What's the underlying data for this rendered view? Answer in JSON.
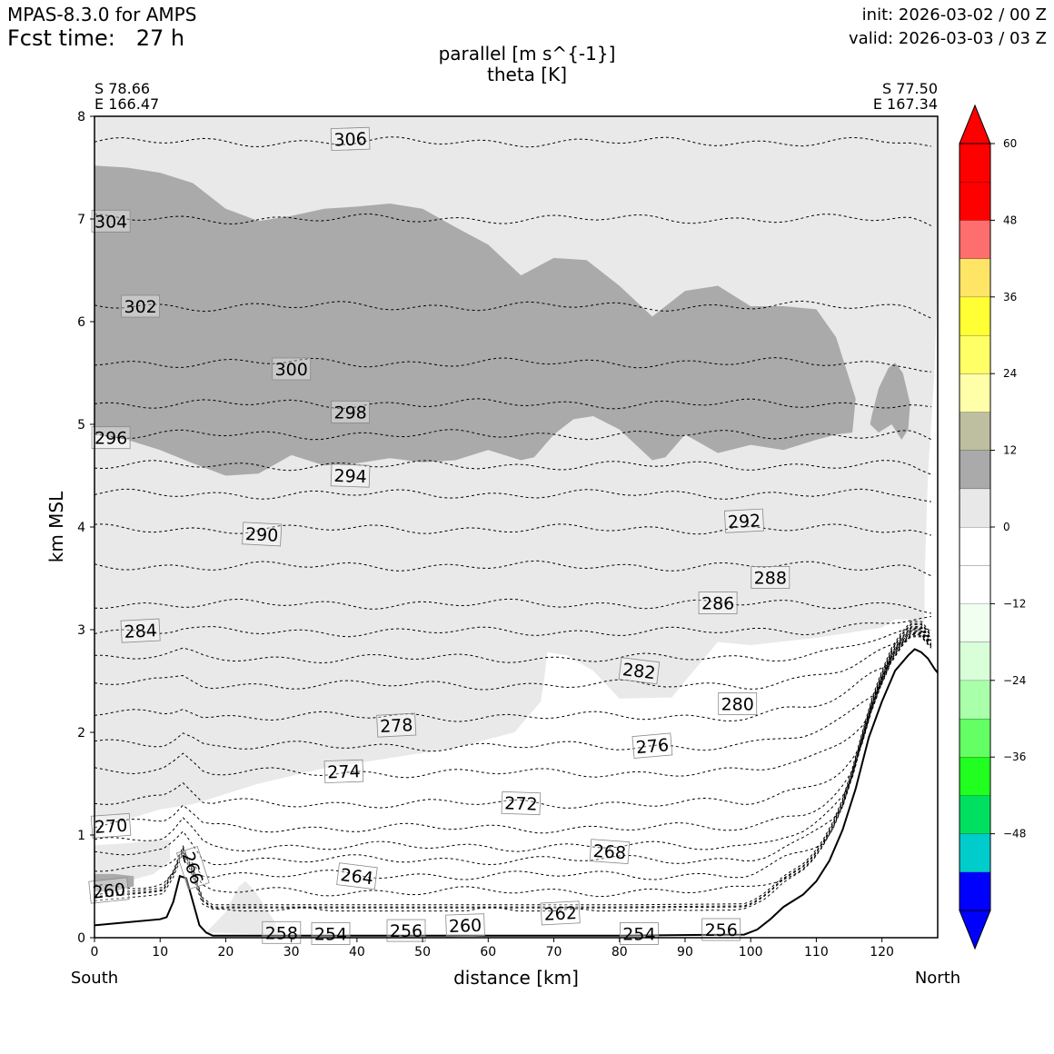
{
  "header": {
    "model": "MPAS-8.3.0 for AMPS",
    "fcst_label": "Fcst time:",
    "fcst_value": "27 h",
    "init": "init: 2026-03-02 / 00 Z",
    "valid": "valid: 2026-03-03 / 03 Z"
  },
  "chart_data": {
    "type": "cross-section",
    "title_line1": "parallel [m s^{-1}]",
    "title_line2": "theta [K]",
    "start_point": {
      "lat": "S 78.66",
      "lon": "E 166.47"
    },
    "end_point": {
      "lat": "S 77.50",
      "lon": "E 167.34"
    },
    "xlabel": "distance [km]",
    "ylabel": "km MSL",
    "xlim": [
      0,
      128.5
    ],
    "ylim": [
      0,
      8
    ],
    "xticks": [
      "0",
      "10",
      "20",
      "30",
      "40",
      "50",
      "60",
      "70",
      "80",
      "90",
      "100",
      "110",
      "120"
    ],
    "yticks": [
      "0",
      "1",
      "2",
      "3",
      "4",
      "5",
      "6",
      "7",
      "8"
    ],
    "left_end_label": "South",
    "right_end_label": "North",
    "colorbar": {
      "min": -60,
      "max": 60,
      "step": 6,
      "tick_labels": [
        "60",
        "48",
        "36",
        "24",
        "12",
        "0",
        "−12",
        "−24",
        "−36",
        "−48"
      ],
      "tick_values": [
        60,
        48,
        36,
        24,
        12,
        0,
        -12,
        -24,
        -36,
        -48
      ],
      "colors": [
        "#0000ff",
        "#00cccc",
        "#00e060",
        "#20ff20",
        "#64ff64",
        "#aaffaa",
        "#d8ffd8",
        "#f0fff0",
        "#ffffff",
        "#ffffff",
        "#e8e8e8",
        "#aaaaaa",
        "#bebea0",
        "#ffffaa",
        "#ffff66",
        "#ffff33",
        "#ffe566",
        "#ff6e6e",
        "#ff0000",
        "#ff0000"
      ]
    },
    "terrain": [
      [
        0,
        0.12
      ],
      [
        5,
        0.15
      ],
      [
        10,
        0.18
      ],
      [
        11,
        0.2
      ],
      [
        12,
        0.35
      ],
      [
        13,
        0.6
      ],
      [
        14,
        0.58
      ],
      [
        15,
        0.35
      ],
      [
        16,
        0.12
      ],
      [
        17,
        0.05
      ],
      [
        18,
        0.02
      ],
      [
        20,
        0.02
      ],
      [
        40,
        0.02
      ],
      [
        60,
        0.02
      ],
      [
        80,
        0.02
      ],
      [
        99,
        0.03
      ],
      [
        101,
        0.08
      ],
      [
        103,
        0.18
      ],
      [
        105,
        0.3
      ],
      [
        108,
        0.42
      ],
      [
        110,
        0.55
      ],
      [
        112,
        0.75
      ],
      [
        114,
        1.05
      ],
      [
        116,
        1.45
      ],
      [
        118,
        1.95
      ],
      [
        120,
        2.3
      ],
      [
        122,
        2.6
      ],
      [
        124,
        2.75
      ],
      [
        125,
        2.81
      ],
      [
        126,
        2.78
      ],
      [
        127,
        2.72
      ],
      [
        128,
        2.62
      ],
      [
        128.5,
        2.58
      ]
    ],
    "wind_12_18_region": [
      [
        0,
        7.52
      ],
      [
        5,
        7.5
      ],
      [
        10,
        7.45
      ],
      [
        15,
        7.35
      ],
      [
        20,
        7.1
      ],
      [
        25,
        6.98
      ],
      [
        30,
        7.03
      ],
      [
        35,
        7.1
      ],
      [
        40,
        7.12
      ],
      [
        45,
        7.15
      ],
      [
        50,
        7.1
      ],
      [
        55,
        6.92
      ],
      [
        60,
        6.75
      ],
      [
        65,
        6.45
      ],
      [
        70,
        6.62
      ],
      [
        75,
        6.6
      ],
      [
        80,
        6.35
      ],
      [
        85,
        6.05
      ],
      [
        90,
        6.3
      ],
      [
        95,
        6.35
      ],
      [
        100,
        6.15
      ],
      [
        105,
        6.15
      ],
      [
        110,
        6.12
      ],
      [
        113,
        5.85
      ],
      [
        115,
        5.45
      ],
      [
        116,
        5.25
      ],
      [
        115.5,
        4.92
      ],
      [
        113,
        4.9
      ],
      [
        110,
        4.85
      ],
      [
        105,
        4.75
      ],
      [
        100,
        4.8
      ],
      [
        95,
        4.72
      ],
      [
        90,
        4.9
      ],
      [
        87,
        4.68
      ],
      [
        85,
        4.65
      ],
      [
        80,
        4.95
      ],
      [
        76,
        5.08
      ],
      [
        73,
        5.05
      ],
      [
        70,
        4.9
      ],
      [
        67,
        4.68
      ],
      [
        65,
        4.65
      ],
      [
        60,
        4.75
      ],
      [
        55,
        4.65
      ],
      [
        50,
        4.63
      ],
      [
        45,
        4.67
      ],
      [
        40,
        4.62
      ],
      [
        35,
        4.6
      ],
      [
        30,
        4.7
      ],
      [
        25,
        4.52
      ],
      [
        20,
        4.5
      ],
      [
        15,
        4.62
      ],
      [
        10,
        4.75
      ],
      [
        5,
        4.85
      ],
      [
        0,
        4.9
      ]
    ],
    "wind_12_18_blob": [
      [
        118.5,
        5.1
      ],
      [
        119.5,
        5.35
      ],
      [
        121,
        5.55
      ],
      [
        122,
        5.6
      ],
      [
        123.2,
        5.5
      ],
      [
        124.3,
        5.2
      ],
      [
        124,
        4.95
      ],
      [
        123,
        4.85
      ],
      [
        121.5,
        5.0
      ],
      [
        119.5,
        4.92
      ],
      [
        118.2,
        5.0
      ]
    ],
    "wind_6_12_region": [
      [
        0,
        8
      ],
      [
        128.5,
        8
      ],
      [
        128.5,
        6.4
      ],
      [
        128,
        5.5
      ],
      [
        127,
        4.5
      ],
      [
        126.5,
        3.5
      ],
      [
        126.5,
        3.1
      ],
      [
        125.5,
        2.92
      ],
      [
        124,
        3.1
      ],
      [
        122,
        3.1
      ],
      [
        120,
        3.02
      ],
      [
        110,
        2.92
      ],
      [
        100,
        2.85
      ],
      [
        95,
        2.88
      ],
      [
        90,
        2.5
      ],
      [
        88,
        2.34
      ],
      [
        80,
        2.33
      ],
      [
        76,
        2.6
      ],
      [
        72,
        2.75
      ],
      [
        69,
        2.78
      ],
      [
        68.5,
        2.5
      ],
      [
        68,
        2.3
      ],
      [
        64,
        2.0
      ],
      [
        55,
        1.85
      ],
      [
        45,
        1.75
      ],
      [
        35,
        1.65
      ],
      [
        25,
        1.5
      ],
      [
        15,
        1.3
      ],
      [
        10,
        1.25
      ],
      [
        5,
        1.15
      ],
      [
        0,
        1.1
      ]
    ],
    "wind_6_12_lower": [
      [
        0,
        0.9
      ],
      [
        5,
        0.92
      ],
      [
        10,
        0.95
      ],
      [
        11.5,
        0.95
      ],
      [
        11.5,
        0.75
      ],
      [
        9,
        0.62
      ],
      [
        5,
        0.55
      ],
      [
        0,
        0.52
      ]
    ],
    "wind_6_12_bump": [
      [
        17,
        0.05
      ],
      [
        20,
        0.25
      ],
      [
        22,
        0.5
      ],
      [
        23,
        0.55
      ],
      [
        24.5,
        0.45
      ],
      [
        26,
        0.3
      ],
      [
        27.5,
        0.15
      ],
      [
        28,
        0.03
      ]
    ],
    "wind_12_18_lower": [
      [
        0,
        0.62
      ],
      [
        3,
        0.62
      ],
      [
        6,
        0.6
      ],
      [
        6,
        0.5
      ],
      [
        3,
        0.45
      ],
      [
        0,
        0.45
      ]
    ],
    "theta_contours": [
      {
        "label": "306",
        "y": 7.75,
        "label_x": 39,
        "label_y": 7.78,
        "angle": -2
      },
      {
        "label": "304",
        "y": 7.0,
        "label_x": 2.5,
        "label_y": 6.98,
        "angle": 0
      },
      {
        "label": "302",
        "y": 6.15,
        "label_x": 7,
        "label_y": 6.15,
        "angle": 0
      },
      {
        "label": "300",
        "y": 5.6,
        "label_x": 30,
        "label_y": 5.54,
        "angle": 0
      },
      {
        "label": "298",
        "y": 5.2,
        "label_x": 39,
        "label_y": 5.12,
        "angle": 0
      },
      {
        "label": "296",
        "y": 4.9,
        "label_x": 2.5,
        "label_y": 4.87,
        "angle": 0
      },
      {
        "label": "294",
        "y": 4.6,
        "label_x": 39,
        "label_y": 4.5,
        "angle": 2
      },
      {
        "label": "292",
        "y": 4.32,
        "label_x": 99,
        "label_y": 4.06,
        "angle": -3
      },
      {
        "label": "290",
        "y": 3.98,
        "label_x": 25.5,
        "label_y": 3.93,
        "angle": 3
      },
      {
        "label": "288",
        "y": 3.62,
        "label_x": 103,
        "label_y": 3.51,
        "angle": 0
      },
      {
        "label": "286",
        "y": 3.25,
        "label_x": 95,
        "label_y": 3.26,
        "angle": 0
      },
      {
        "label": "284",
        "y": 2.98,
        "label_x": 7,
        "label_y": 2.99,
        "angle": -3
      },
      {
        "label": "282",
        "y": 2.72,
        "label_x": 83,
        "label_y": 2.6,
        "angle": 7
      },
      {
        "label": "280",
        "y": 2.46,
        "label_x": 98,
        "label_y": 2.28,
        "angle": 0
      },
      {
        "label": "278",
        "y": 2.15,
        "label_x": 46,
        "label_y": 2.07,
        "angle": -3
      },
      {
        "label": "276",
        "y": 1.86,
        "label_x": 85,
        "label_y": 1.87,
        "angle": -5
      },
      {
        "label": "274",
        "y": 1.6,
        "label_x": 38,
        "label_y": 1.62,
        "angle": -2
      },
      {
        "label": "272",
        "y": 1.3,
        "label_x": 65,
        "label_y": 1.31,
        "angle": 2
      },
      {
        "label": "270",
        "y": 1.06,
        "label_x": 2.5,
        "label_y": 1.09,
        "angle": -4
      },
      {
        "label": "268",
        "y": 0.88,
        "label_x": 78.5,
        "label_y": 0.84,
        "angle": 4
      },
      {
        "label": "266",
        "y": 0.75,
        "label_x": 15,
        "label_y": 0.68,
        "angle": 72
      },
      {
        "label": "264",
        "y": 0.6,
        "label_x": 40,
        "label_y": 0.6,
        "angle": 7
      },
      {
        "label": "262",
        "y": 0.24,
        "label_x": 71,
        "label_y": 0.24,
        "angle": -3
      },
      {
        "label": "260",
        "y": 0.44,
        "label_x": 2.2,
        "label_y": 0.46,
        "angle": -6
      },
      {
        "label": "260",
        "y": 0.12,
        "label_x": 56.5,
        "label_y": 0.12,
        "angle": -2
      },
      {
        "label": "258",
        "y": 0.07,
        "label_x": 28.5,
        "label_y": 0.05,
        "angle": 0
      },
      {
        "label": "256",
        "y": 0.06,
        "label_x": 47.5,
        "label_y": 0.07,
        "angle": 0
      },
      {
        "label": "256",
        "y": 0.05,
        "label_x": 95.5,
        "label_y": 0.08,
        "angle": 0
      },
      {
        "label": "254",
        "y": 0.04,
        "label_x": 36,
        "label_y": 0.04,
        "angle": 0
      },
      {
        "label": "254",
        "y": 0.04,
        "label_x": 83,
        "label_y": 0.04,
        "angle": 0
      }
    ]
  }
}
